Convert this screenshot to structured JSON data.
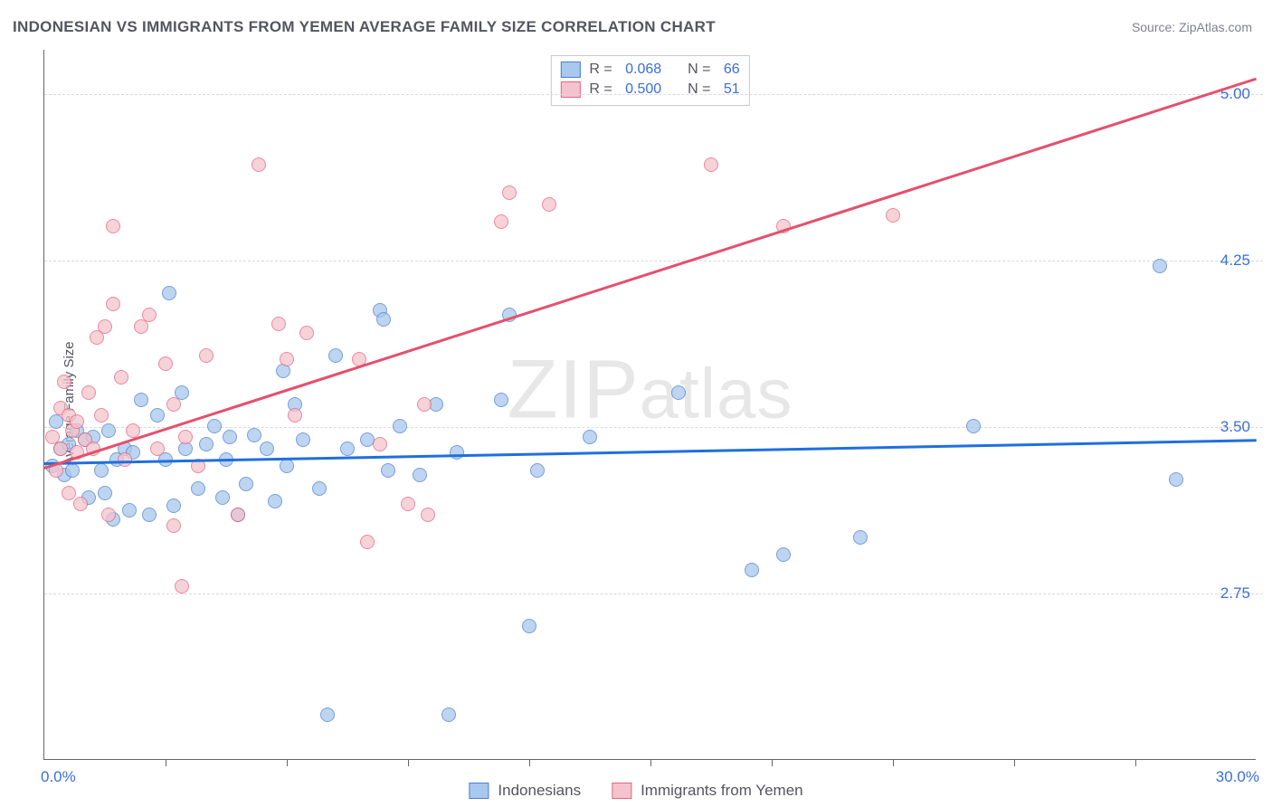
{
  "title": "INDONESIAN VS IMMIGRANTS FROM YEMEN AVERAGE FAMILY SIZE CORRELATION CHART",
  "source_label": "Source: ",
  "source_value": "ZipAtlas.com",
  "ylabel": "Average Family Size",
  "watermark": {
    "t1": "ZIP",
    "t2": "atlas"
  },
  "chart": {
    "type": "scatter",
    "xlim": [
      0,
      30
    ],
    "ylim": [
      2.0,
      5.2
    ],
    "x_start_label": "0.0%",
    "x_end_label": "30.0%",
    "yticks": [
      2.75,
      3.5,
      4.25,
      5.0
    ],
    "ytick_labels": [
      "2.75",
      "3.50",
      "4.25",
      "5.00"
    ],
    "xticks": [
      3,
      6,
      9,
      12,
      15,
      18,
      21,
      24,
      27
    ],
    "background_color": "#ffffff",
    "grid_color": "#d8d8e0",
    "tick_label_color": "#3a6fd8",
    "title_color": "#555560",
    "title_fontsize": 17,
    "label_fontsize": 15,
    "series": [
      {
        "name": "Indonesians",
        "fill_color": "#a8c8ed",
        "stroke_color": "#4a80cc",
        "reg": {
          "slope": 0.0035,
          "intercept": 3.34,
          "line_color": "#1f6fe0",
          "line_width": 3
        },
        "stats": {
          "R": "0.068",
          "N": "66"
        },
        "points": [
          [
            0.2,
            3.32
          ],
          [
            0.3,
            3.52
          ],
          [
            0.4,
            3.4
          ],
          [
            0.5,
            3.28
          ],
          [
            0.6,
            3.42
          ],
          [
            0.7,
            3.3
          ],
          [
            0.8,
            3.48
          ],
          [
            1.0,
            3.44
          ],
          [
            1.1,
            3.18
          ],
          [
            1.2,
            3.45
          ],
          [
            1.4,
            3.3
          ],
          [
            1.5,
            3.2
          ],
          [
            1.6,
            3.48
          ],
          [
            1.7,
            3.08
          ],
          [
            2.0,
            3.4
          ],
          [
            2.1,
            3.12
          ],
          [
            2.2,
            3.38
          ],
          [
            2.4,
            3.62
          ],
          [
            2.6,
            3.1
          ],
          [
            3.0,
            3.35
          ],
          [
            3.1,
            4.1
          ],
          [
            3.2,
            3.14
          ],
          [
            3.4,
            3.65
          ],
          [
            3.5,
            3.4
          ],
          [
            3.8,
            3.22
          ],
          [
            4.0,
            3.42
          ],
          [
            4.2,
            3.5
          ],
          [
            4.4,
            3.18
          ],
          [
            4.6,
            3.45
          ],
          [
            4.8,
            3.1
          ],
          [
            5.0,
            3.24
          ],
          [
            5.2,
            3.46
          ],
          [
            5.5,
            3.4
          ],
          [
            5.9,
            3.75
          ],
          [
            6.0,
            3.32
          ],
          [
            6.4,
            3.44
          ],
          [
            6.8,
            3.22
          ],
          [
            7.0,
            2.2
          ],
          [
            7.2,
            3.82
          ],
          [
            7.5,
            3.4
          ],
          [
            8.0,
            3.44
          ],
          [
            8.3,
            4.02
          ],
          [
            8.4,
            3.98
          ],
          [
            8.5,
            3.3
          ],
          [
            8.8,
            3.5
          ],
          [
            9.3,
            3.28
          ],
          [
            9.7,
            3.6
          ],
          [
            10.0,
            2.2
          ],
          [
            10.2,
            3.38
          ],
          [
            11.3,
            3.62
          ],
          [
            11.5,
            4.0
          ],
          [
            12.0,
            2.6
          ],
          [
            12.2,
            3.3
          ],
          [
            13.5,
            3.45
          ],
          [
            15.7,
            3.65
          ],
          [
            17.5,
            2.85
          ],
          [
            18.3,
            2.92
          ],
          [
            20.2,
            3.0
          ],
          [
            23.0,
            3.5
          ],
          [
            27.6,
            4.22
          ],
          [
            28.0,
            3.26
          ],
          [
            1.8,
            3.35
          ],
          [
            2.8,
            3.55
          ],
          [
            4.5,
            3.35
          ],
          [
            6.2,
            3.6
          ],
          [
            5.7,
            3.16
          ]
        ]
      },
      {
        "name": "Immigrants from Yemen",
        "fill_color": "#f4c3cd",
        "stroke_color": "#e5647e",
        "reg": {
          "slope": 0.0585,
          "intercept": 3.32,
          "line_color": "#e5506c",
          "line_width": 3
        },
        "stats": {
          "R": "0.500",
          "N": "51"
        },
        "points": [
          [
            0.2,
            3.45
          ],
          [
            0.3,
            3.3
          ],
          [
            0.4,
            3.58
          ],
          [
            0.5,
            3.7
          ],
          [
            0.6,
            3.2
          ],
          [
            0.6,
            3.55
          ],
          [
            0.7,
            3.48
          ],
          [
            0.8,
            3.38
          ],
          [
            0.9,
            3.15
          ],
          [
            1.0,
            3.44
          ],
          [
            1.1,
            3.65
          ],
          [
            1.2,
            3.4
          ],
          [
            1.3,
            3.9
          ],
          [
            1.5,
            3.95
          ],
          [
            1.6,
            3.1
          ],
          [
            1.7,
            4.05
          ],
          [
            1.7,
            4.4
          ],
          [
            1.9,
            3.72
          ],
          [
            2.0,
            3.35
          ],
          [
            2.2,
            3.48
          ],
          [
            2.4,
            3.95
          ],
          [
            2.6,
            4.0
          ],
          [
            3.0,
            3.78
          ],
          [
            3.2,
            3.05
          ],
          [
            3.2,
            3.6
          ],
          [
            3.4,
            2.78
          ],
          [
            3.5,
            3.45
          ],
          [
            3.8,
            3.32
          ],
          [
            4.0,
            3.82
          ],
          [
            4.8,
            3.1
          ],
          [
            5.3,
            4.68
          ],
          [
            6.0,
            3.8
          ],
          [
            6.2,
            3.55
          ],
          [
            6.5,
            3.92
          ],
          [
            7.8,
            3.8
          ],
          [
            8.0,
            2.98
          ],
          [
            8.3,
            3.42
          ],
          [
            9.0,
            3.15
          ],
          [
            9.4,
            3.6
          ],
          [
            9.5,
            3.1
          ],
          [
            11.3,
            4.42
          ],
          [
            11.5,
            4.55
          ],
          [
            12.5,
            4.5
          ],
          [
            16.5,
            4.68
          ],
          [
            18.3,
            4.4
          ],
          [
            21.0,
            4.45
          ],
          [
            0.4,
            3.4
          ],
          [
            1.4,
            3.55
          ],
          [
            2.8,
            3.4
          ],
          [
            5.8,
            3.96
          ],
          [
            0.8,
            3.52
          ]
        ]
      }
    ],
    "legend_bottom": [
      "Indonesians",
      "Immigrants from Yemen"
    ],
    "stats_box_labels": {
      "R": "R = ",
      "N": "N = "
    }
  }
}
